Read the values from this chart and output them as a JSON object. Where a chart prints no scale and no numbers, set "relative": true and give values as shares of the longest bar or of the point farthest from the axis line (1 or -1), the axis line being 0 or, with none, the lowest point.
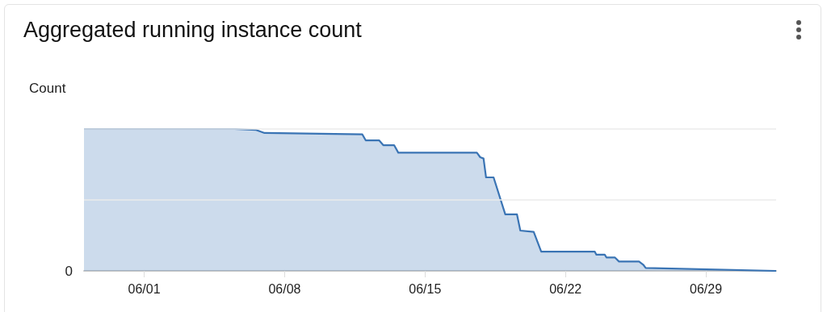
{
  "chart_data": {
    "type": "area",
    "title": "Aggregated running instance count",
    "ylabel": "Count",
    "relative": true,
    "marker": "none",
    "line_style": "solid",
    "annotations": [
      "0"
    ],
    "ref_lines": [
      {
        "axis": "y",
        "value": 0.5,
        "color": "#ebebeb"
      },
      {
        "axis": "y",
        "value": 1,
        "color": "#ebebeb"
      }
    ],
    "xlim": [
      "--05-29",
      "--07-02T12:00"
    ],
    "xticks": [
      {
        "value": "--06-01",
        "label": "06/01"
      },
      {
        "value": "--06-08",
        "label": "06/08"
      },
      {
        "value": "--06-15",
        "label": "06/15"
      },
      {
        "value": "--06-22",
        "label": "06/22"
      },
      {
        "value": "--06-29",
        "label": "06/29"
      }
    ],
    "series": [
      {
        "color": "#3a74b4",
        "x": [
          "--05-29",
          "--06-05T12:00",
          "--06-06T14:00",
          "--06-07",
          "--06-11T21:00",
          "--06-12T01:00",
          "--06-12T17:00",
          "--06-12T22:00",
          "--06-13T11:00",
          "--06-13T16:00",
          "--06-17T14:00",
          "--06-17T18:00",
          "--06-17T22:00",
          "--06-18T01:00",
          "--06-18T10:00",
          "--06-19",
          "--06-19T14:00",
          "--06-19T18:00",
          "--06-20T10:00",
          "--06-20T19:00",
          "--06-23T11:00",
          "--06-23T13:00",
          "--06-23T23:00",
          "--06-24T01:00",
          "--06-24T11:00",
          "--06-24T16:00",
          "--06-25T16:00",
          "--06-25T21:00",
          "--06-26",
          "--07-02T12:00"
        ],
        "values": [
          1,
          1,
          0.993,
          0.972,
          0.962,
          0.92,
          0.92,
          0.886,
          0.886,
          0.833,
          0.833,
          0.801,
          0.792,
          0.659,
          0.659,
          0.398,
          0.398,
          0.284,
          0.275,
          0.136,
          0.136,
          0.114,
          0.114,
          0.095,
          0.095,
          0.066,
          0.066,
          0.044,
          0.021,
          0
        ]
      }
    ]
  }
}
